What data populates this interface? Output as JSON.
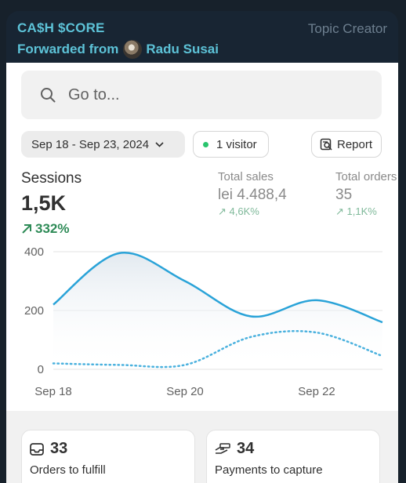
{
  "message": {
    "channel": "CA$H $CORE",
    "role": "Topic Creator",
    "forwarded_prefix": "Forwarded from",
    "forwarded_name": "Radu Susai"
  },
  "search": {
    "placeholder": "Go to..."
  },
  "filters": {
    "date_range": "Sep 18 - Sep 23, 2024",
    "visitors": "1 visitor",
    "report": "Report"
  },
  "sessions": {
    "label": "Sessions",
    "value": "1,5K",
    "change": "332%"
  },
  "total_sales": {
    "label": "Total sales",
    "value": "lei 4.488,4",
    "change": "4,6K%"
  },
  "total_orders": {
    "label": "Total orders",
    "value": "35",
    "change": "1,1K%"
  },
  "cards": [
    {
      "count": "33",
      "label": "Orders to fulfill",
      "icon": "inbox-icon"
    },
    {
      "count": "34",
      "label": "Payments to capture",
      "icon": "hand-money-icon"
    }
  ],
  "colors": {
    "accent": "#5dc3d8",
    "line": "#2aa3d8",
    "positive": "#2e8b57"
  },
  "chart_data": {
    "type": "line",
    "x": [
      "Sep 18",
      "Sep 19",
      "Sep 20",
      "Sep 21",
      "Sep 22",
      "Sep 23"
    ],
    "xticks": [
      "Sep 18",
      "Sep 20",
      "Sep 22"
    ],
    "yticks": [
      "0",
      "200",
      "400"
    ],
    "ylim": [
      0,
      400
    ],
    "series": [
      {
        "style": "solid",
        "values": [
          220,
          395,
          300,
          180,
          235,
          160
        ]
      },
      {
        "style": "dotted",
        "values": [
          20,
          15,
          15,
          110,
          125,
          45
        ]
      }
    ],
    "grid": true
  }
}
